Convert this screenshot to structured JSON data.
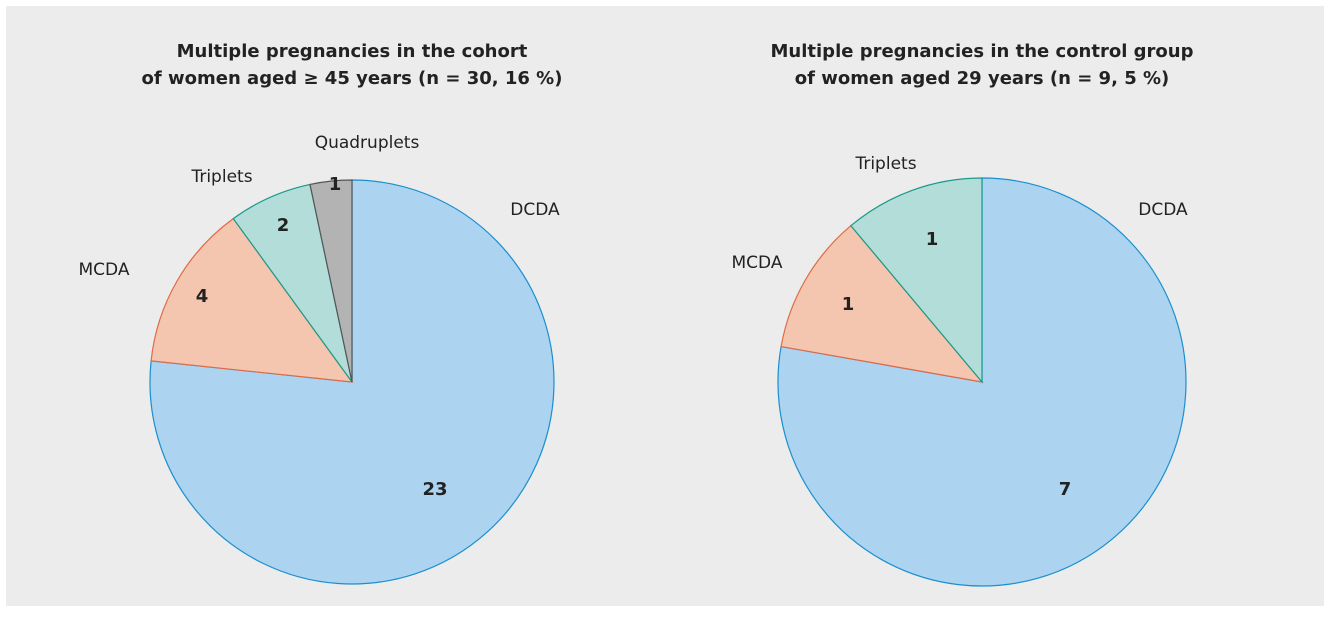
{
  "chart_data": [
    {
      "type": "pie",
      "title": [
        "Multiple pregnancies in the cohort",
        "of women aged ≥ 45 years (n = 30, 16 %)"
      ],
      "categories": [
        "DCDA",
        "MCDA",
        "Triplets",
        "Quadruplets"
      ],
      "values": [
        23,
        4,
        2,
        1
      ],
      "colors": [
        "#acd3f0",
        "#f4c6b0",
        "#b2ddd8",
        "#b3b3b3"
      ],
      "stroke_colors": [
        "#1a8fcf",
        "#e06a45",
        "#1a9a8a",
        "#555555"
      ]
    },
    {
      "type": "pie",
      "title": [
        "Multiple pregnancies in the control group",
        "of women aged 29 years (n = 9, 5 %)"
      ],
      "categories": [
        "DCDA",
        "MCDA",
        "Triplets"
      ],
      "values": [
        7,
        1,
        1
      ],
      "colors": [
        "#acd3f0",
        "#f4c6b0",
        "#b2ddd8"
      ],
      "stroke_colors": [
        "#1a8fcf",
        "#e06a45",
        "#1a9a8a"
      ]
    }
  ]
}
